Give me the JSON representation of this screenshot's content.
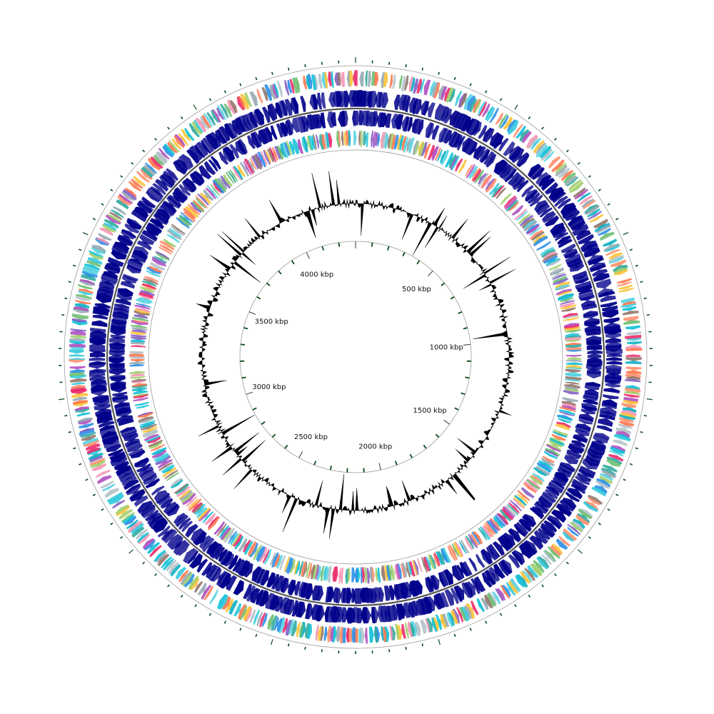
{
  "genome": {
    "total_kbp": 4300,
    "origin_offset_kbp": 0
  },
  "scale": {
    "unit": "kbp",
    "labels": [
      {
        "pos": 500,
        "text": "500 kbp"
      },
      {
        "pos": 1000,
        "text": "1000 kbp"
      },
      {
        "pos": 1500,
        "text": "1500 kbp"
      },
      {
        "pos": 2000,
        "text": "2000 kbp"
      },
      {
        "pos": 2500,
        "text": "2500 kbp"
      },
      {
        "pos": 3000,
        "text": "3000 kbp"
      },
      {
        "pos": 3500,
        "text": "3500 kbp"
      },
      {
        "pos": 4000,
        "text": "4000 kbp"
      }
    ],
    "minor_tick_kbp": 100
  },
  "tracks": [
    {
      "id": "outer-features",
      "kind": "colored-features",
      "count": 560
    },
    {
      "id": "forward-cds",
      "kind": "cds",
      "color": "#00008b",
      "count": 420
    },
    {
      "id": "reverse-cds",
      "kind": "cds",
      "color": "#00008b",
      "count": 420
    },
    {
      "id": "inner-features",
      "kind": "colored-features",
      "count": 560
    },
    {
      "id": "gc-content",
      "kind": "signal",
      "color": "#000000",
      "count": 700
    }
  ],
  "colors": {
    "cds_blue": "#00008b",
    "gc_fill": "#000000",
    "guide": "#9a9a9a",
    "tick_green": "#0a4a1a",
    "feature_palette": [
      "#00bcd4",
      "#26c6da",
      "#4dd0e1",
      "#1e88e5",
      "#7e57c2",
      "#e91e63",
      "#ff7043",
      "#fbc02d",
      "#9ccc65",
      "#26a69a",
      "#8d6e63",
      "#90a4ae",
      "#f48fb1",
      "#b0bec5",
      "#00acc1",
      "#ab47bc",
      "#ff8a65",
      "#66bb6a"
    ]
  }
}
